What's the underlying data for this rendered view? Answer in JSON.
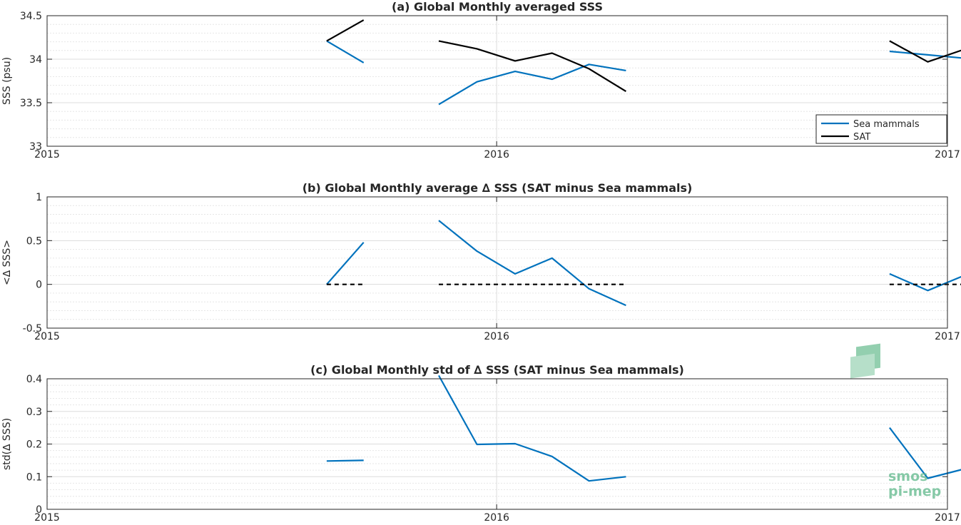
{
  "chart_data": [
    {
      "type": "line",
      "title": "(a) Global Monthly averaged SSS",
      "ylabel": "SSS (psu)",
      "xlim": [
        "2015-01-01",
        "2017-01-01"
      ],
      "ylim": [
        33,
        34.5
      ],
      "yticks": [
        "33",
        "33.5",
        "34",
        "34.5"
      ],
      "xticks": [
        {
          "date": "2015-01-01",
          "label": "2015"
        },
        {
          "date": "2016-01-01",
          "label": "2016"
        },
        {
          "date": "2017-01-01",
          "label": "2017"
        }
      ],
      "grid": true,
      "legend": "bottom-right",
      "series": [
        {
          "name": "Sea mammals",
          "color": "#0072bd",
          "segments": [
            [
              [
                "2015-08-16",
                34.21
              ],
              [
                "2015-09-15",
                33.96
              ]
            ],
            [
              [
                "2015-11-15",
                33.48
              ],
              [
                "2015-12-16",
                33.74
              ],
              [
                "2016-01-16",
                33.86
              ],
              [
                "2016-02-15",
                33.77
              ],
              [
                "2016-03-16",
                33.94
              ],
              [
                "2016-04-15",
                33.87
              ]
            ],
            [
              [
                "2016-11-15",
                34.09
              ],
              [
                "2016-12-16",
                34.05
              ],
              [
                "2017-01-16",
                34.01
              ]
            ]
          ]
        },
        {
          "name": "SAT",
          "color": "#000000",
          "segments": [
            [
              [
                "2015-08-16",
                34.21
              ],
              [
                "2015-09-15",
                34.45
              ]
            ],
            [
              [
                "2015-11-15",
                34.21
              ],
              [
                "2015-12-16",
                34.12
              ],
              [
                "2016-01-16",
                33.98
              ],
              [
                "2016-02-15",
                34.07
              ],
              [
                "2016-03-16",
                33.89
              ],
              [
                "2016-04-15",
                33.63
              ]
            ],
            [
              [
                "2016-11-15",
                34.21
              ],
              [
                "2016-12-16",
                33.97
              ],
              [
                "2017-01-16",
                34.12
              ]
            ]
          ]
        }
      ]
    },
    {
      "type": "line",
      "title": "(b) Global Monthly average ∆ SSS (SAT minus Sea mammals)",
      "ylabel": "<∆ SSS>",
      "xlim": [
        "2015-01-01",
        "2017-01-01"
      ],
      "ylim": [
        -0.5,
        1
      ],
      "yticks": [
        "-0.5",
        "0",
        "0.5",
        "1"
      ],
      "xticks": [
        {
          "date": "2015-01-01",
          "label": "2015"
        },
        {
          "date": "2016-01-01",
          "label": "2016"
        },
        {
          "date": "2017-01-01",
          "label": "2017"
        }
      ],
      "grid": true,
      "series": [
        {
          "color": "#0072bd",
          "segments": [
            [
              [
                "2015-08-16",
                0.0
              ],
              [
                "2015-09-15",
                0.48
              ]
            ],
            [
              [
                "2015-11-15",
                0.73
              ],
              [
                "2015-12-16",
                0.38
              ],
              [
                "2016-01-16",
                0.12
              ],
              [
                "2016-02-15",
                0.3
              ],
              [
                "2016-03-16",
                -0.05
              ],
              [
                "2016-04-15",
                -0.24
              ]
            ],
            [
              [
                "2016-11-15",
                0.12
              ],
              [
                "2016-12-16",
                -0.07
              ],
              [
                "2017-01-16",
                0.11
              ]
            ]
          ]
        },
        {
          "color": "#000000",
          "dashed": true,
          "segments": [
            [
              [
                "2015-08-16",
                0
              ],
              [
                "2015-09-15",
                0
              ]
            ],
            [
              [
                "2015-11-15",
                0
              ],
              [
                "2016-04-15",
                0
              ]
            ],
            [
              [
                "2016-11-15",
                0
              ],
              [
                "2017-01-16",
                0
              ]
            ]
          ]
        }
      ]
    },
    {
      "type": "line",
      "title": "(c) Global Monthly std of ∆ SSS (SAT minus Sea mammals)",
      "ylabel": "std(∆ SSS)",
      "xlim": [
        "2015-01-01",
        "2017-01-01"
      ],
      "ylim": [
        0,
        0.4
      ],
      "yticks": [
        "0",
        "0.1",
        "0.2",
        "0.3",
        "0.4"
      ],
      "xticks": [
        {
          "date": "2015-01-01",
          "label": "2015"
        },
        {
          "date": "2016-01-01",
          "label": "2016"
        },
        {
          "date": "2017-01-01",
          "label": "2017"
        }
      ],
      "grid": true,
      "series": [
        {
          "color": "#0072bd",
          "segments": [
            [
              [
                "2015-08-16",
                0.148
              ],
              [
                "2015-09-15",
                0.15
              ]
            ],
            [
              [
                "2015-11-15",
                0.41
              ],
              [
                "2015-12-16",
                0.199
              ],
              [
                "2016-01-16",
                0.201
              ],
              [
                "2016-02-15",
                0.162
              ],
              [
                "2016-03-16",
                0.087
              ],
              [
                "2016-04-15",
                0.1
              ]
            ],
            [
              [
                "2016-11-15",
                0.25
              ],
              [
                "2016-12-16",
                0.095
              ],
              [
                "2017-01-16",
                0.125
              ]
            ]
          ]
        }
      ]
    }
  ],
  "watermark": {
    "line1": "smos",
    "line2": "pi-mep"
  }
}
